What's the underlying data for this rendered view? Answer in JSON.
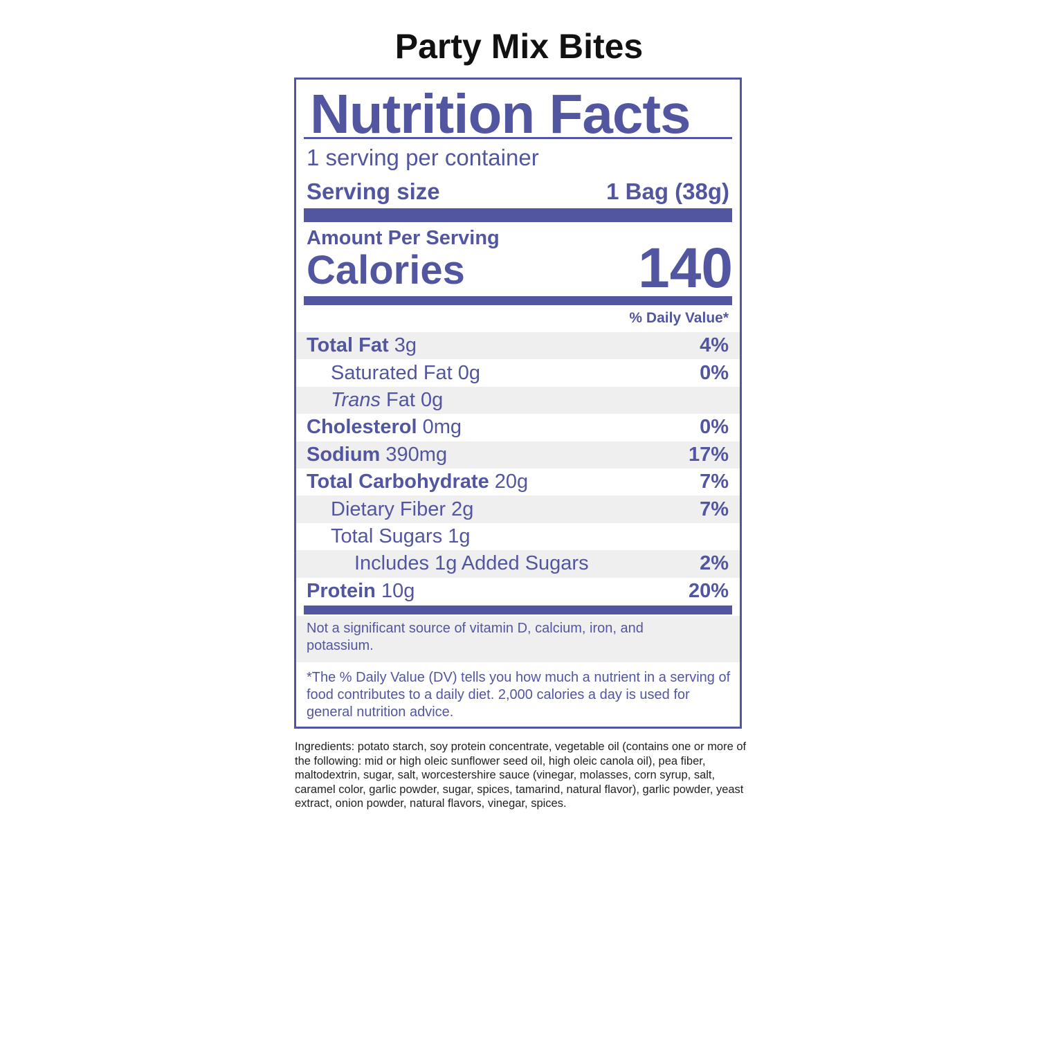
{
  "product_title": "Party Mix Bites",
  "label": {
    "heading": "Nutrition Facts",
    "servings_per_container": "1 serving per container",
    "serving_size_label": "Serving size",
    "serving_size_value": "1 Bag (38g)",
    "amount_per_serving": "Amount Per Serving",
    "calories_label": "Calories",
    "calories_value": "140",
    "daily_value_header": "% Daily Value*",
    "nutrients": [
      {
        "name": "Total Fat",
        "amount": "3g",
        "dv": "4%"
      },
      {
        "name": "Saturated Fat",
        "amount": "0g",
        "dv": "0%"
      },
      {
        "name": "Trans",
        "name_rest": "Fat",
        "amount": "0g",
        "dv": ""
      },
      {
        "name": "Cholesterol",
        "amount": "0mg",
        "dv": "0%"
      },
      {
        "name": "Sodium",
        "amount": "390mg",
        "dv": "17%"
      },
      {
        "name": "Total Carbohydrate",
        "amount": "20g",
        "dv": "7%"
      },
      {
        "name": "Dietary Fiber",
        "amount": "2g",
        "dv": "7%"
      },
      {
        "name": "Total Sugars",
        "amount": "1g",
        "dv": ""
      },
      {
        "name": "Includes 1g Added Sugars",
        "amount": "",
        "dv": "2%"
      },
      {
        "name": "Protein",
        "amount": "10g",
        "dv": "20%"
      }
    ],
    "not_significant": "Not a significant source of vitamin D, calcium, iron, and potassium.",
    "footnote": "*The % Daily Value (DV) tells you how much a nutrient in a serving of food contributes to a daily diet. 2,000 calories a day is used for general nutrition advice."
  },
  "ingredients": "Ingredients: potato starch, soy protein concentrate, vegetable oil (contains one or more of the following: mid or high oleic sunflower seed oil, high oleic canola oil), pea fiber, maltodextrin, sugar, salt, worcestershire sauce (vinegar, molasses, corn syrup, salt, caramel color, garlic powder, sugar, spices, tamarind, natural flavor), garlic powder, yeast extract, onion powder, natural flavors, vinegar, spices.",
  "colors": {
    "label": "#5255a0",
    "row_shade": "#efefef"
  }
}
